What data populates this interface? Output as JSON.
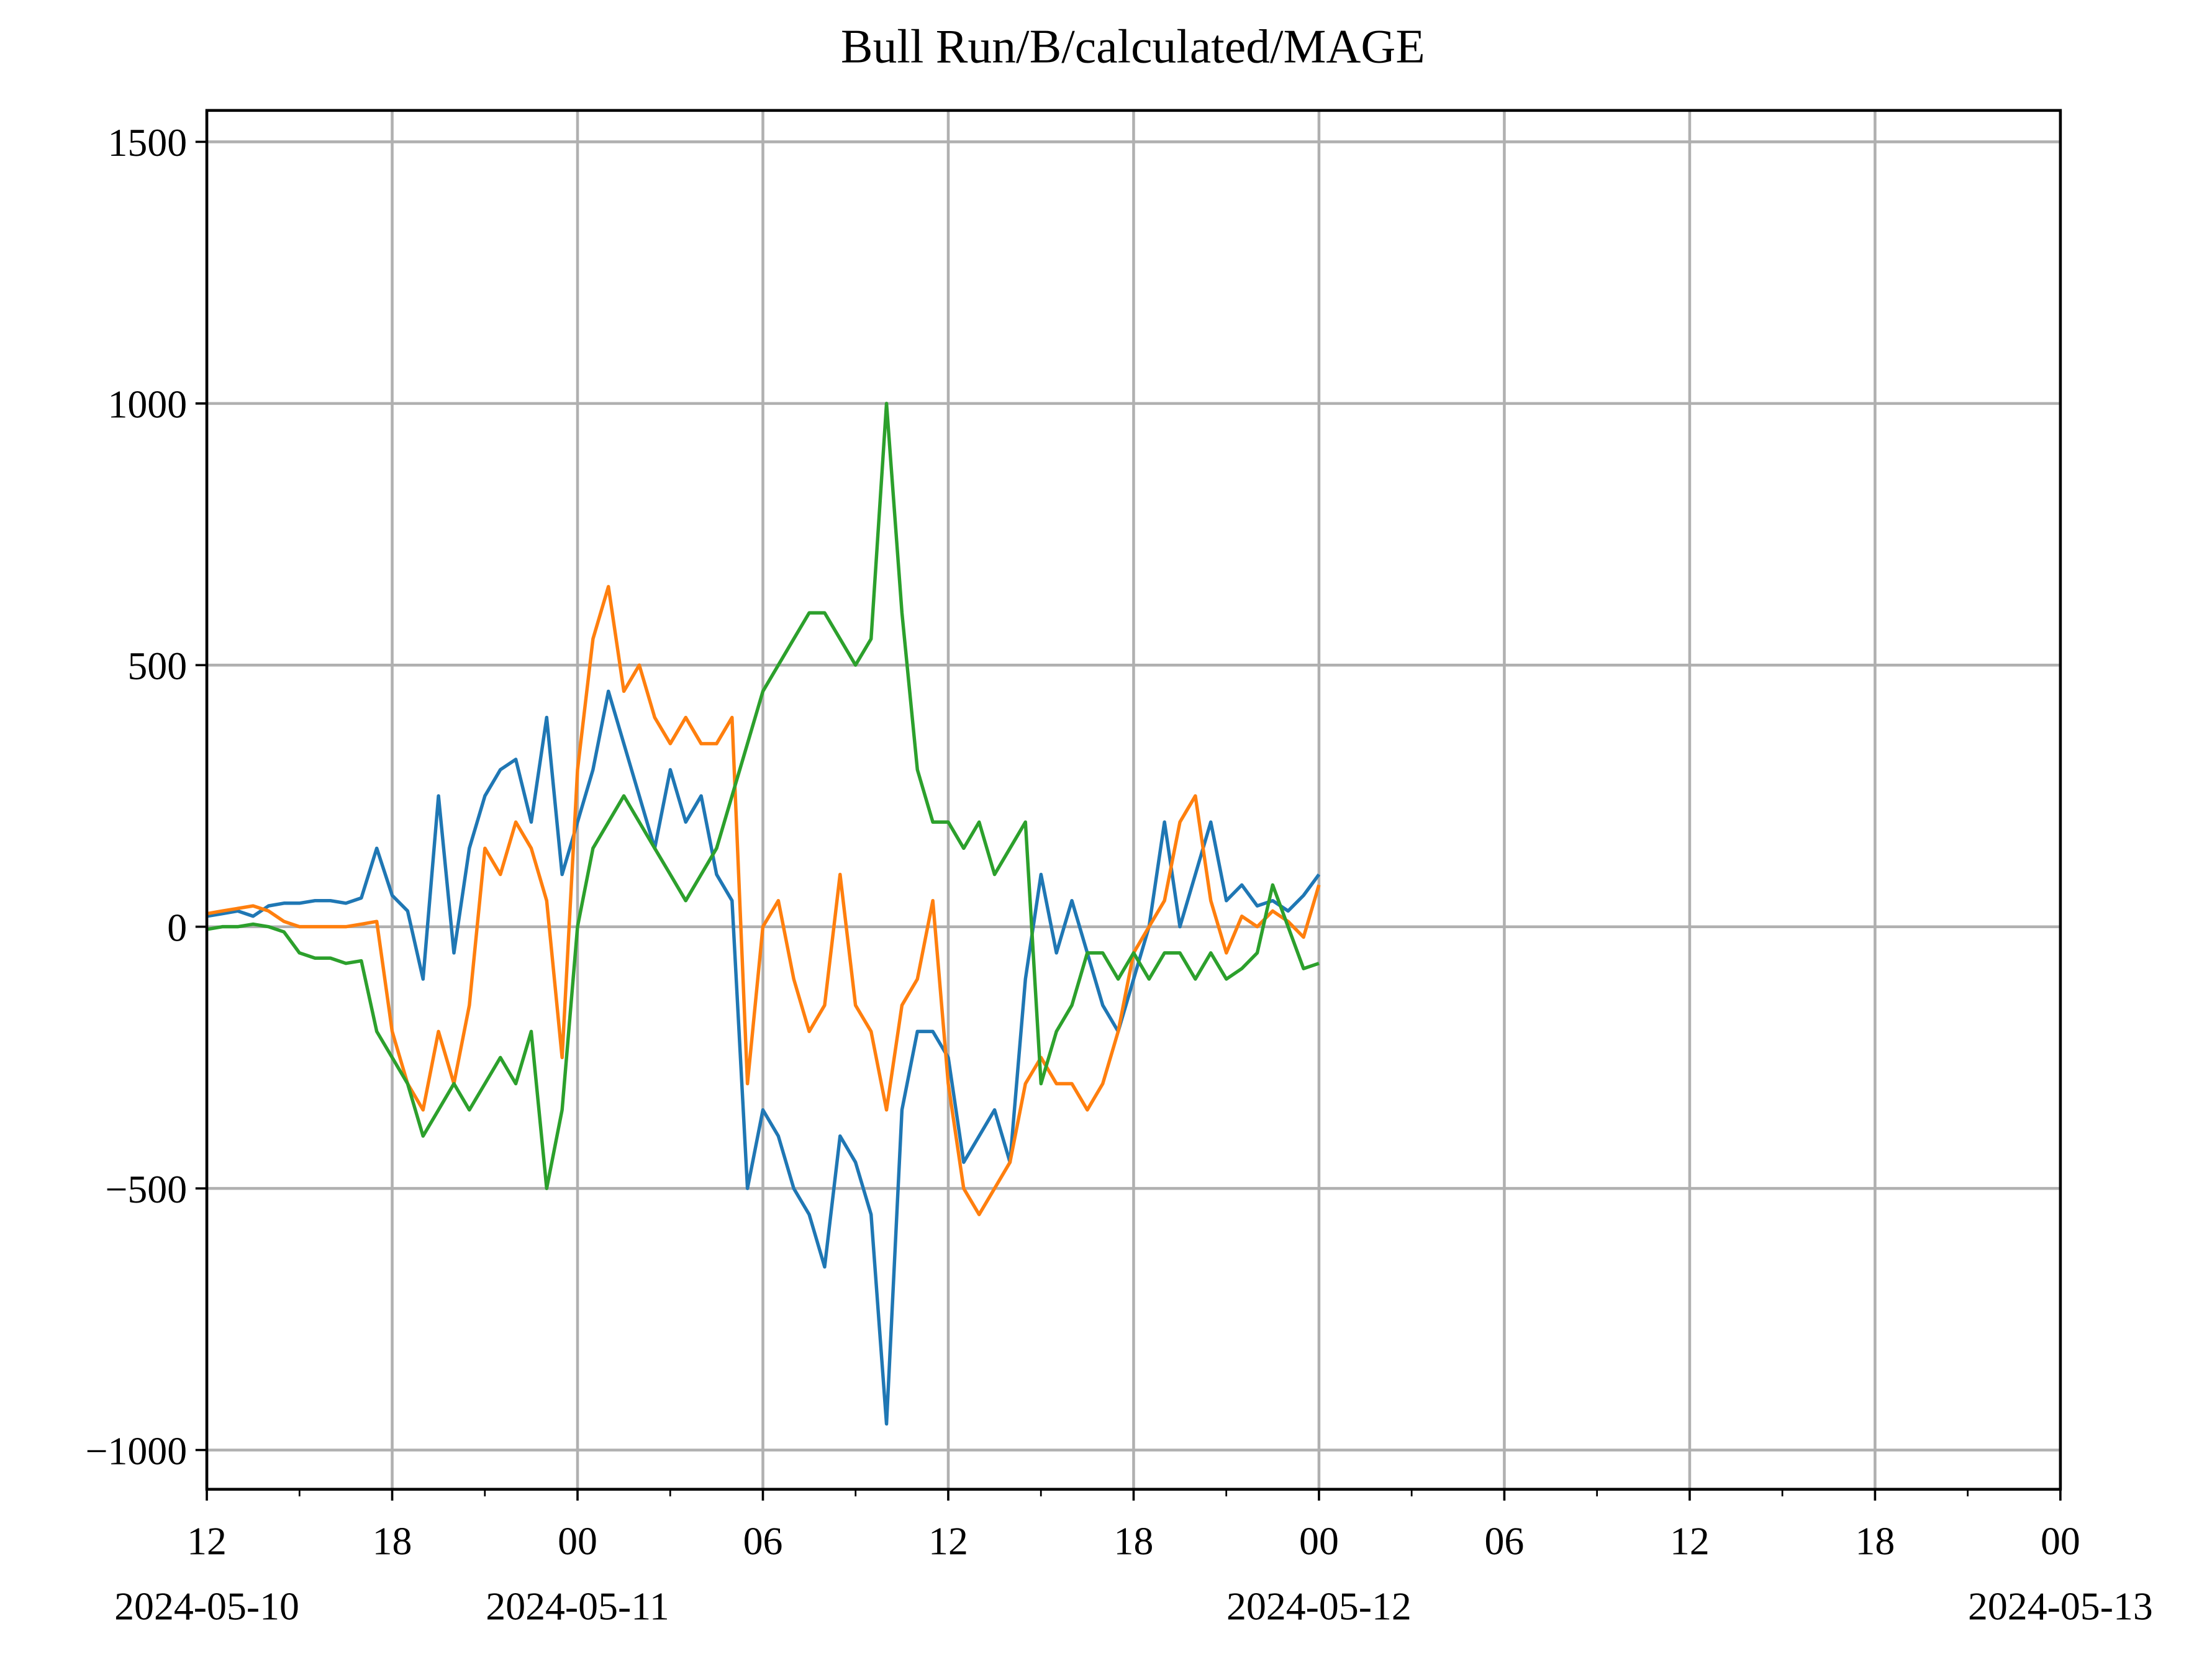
{
  "chart_data": {
    "type": "line",
    "title": "Bull Run/B/calculated/MAGE",
    "x": [
      "2024-05-10 12:00",
      "2024-05-10 12:30",
      "2024-05-10 13:00",
      "2024-05-10 13:30",
      "2024-05-10 14:00",
      "2024-05-10 14:30",
      "2024-05-10 15:00",
      "2024-05-10 15:30",
      "2024-05-10 16:00",
      "2024-05-10 16:30",
      "2024-05-10 17:00",
      "2024-05-10 17:30",
      "2024-05-10 18:00",
      "2024-05-10 18:30",
      "2024-05-10 19:00",
      "2024-05-10 19:30",
      "2024-05-10 20:00",
      "2024-05-10 20:30",
      "2024-05-10 21:00",
      "2024-05-10 21:30",
      "2024-05-10 22:00",
      "2024-05-10 22:30",
      "2024-05-10 23:00",
      "2024-05-10 23:30",
      "2024-05-11 00:00",
      "2024-05-11 00:30",
      "2024-05-11 01:00",
      "2024-05-11 01:30",
      "2024-05-11 02:00",
      "2024-05-11 02:30",
      "2024-05-11 03:00",
      "2024-05-11 03:30",
      "2024-05-11 04:00",
      "2024-05-11 04:30",
      "2024-05-11 05:00",
      "2024-05-11 05:30",
      "2024-05-11 06:00",
      "2024-05-11 06:30",
      "2024-05-11 07:00",
      "2024-05-11 07:30",
      "2024-05-11 08:00",
      "2024-05-11 08:30",
      "2024-05-11 09:00",
      "2024-05-11 09:30",
      "2024-05-11 10:00",
      "2024-05-11 10:30",
      "2024-05-11 11:00",
      "2024-05-11 11:30",
      "2024-05-11 12:00",
      "2024-05-11 12:30",
      "2024-05-11 13:00",
      "2024-05-11 13:30",
      "2024-05-11 14:00",
      "2024-05-11 14:30",
      "2024-05-11 15:00",
      "2024-05-11 15:30",
      "2024-05-11 16:00",
      "2024-05-11 16:30",
      "2024-05-11 17:00",
      "2024-05-11 17:30",
      "2024-05-11 18:00",
      "2024-05-11 18:30",
      "2024-05-11 19:00",
      "2024-05-11 19:30",
      "2024-05-11 20:00",
      "2024-05-11 20:30",
      "2024-05-11 21:00",
      "2024-05-11 21:30",
      "2024-05-11 22:00",
      "2024-05-11 22:30",
      "2024-05-11 23:00",
      "2024-05-11 23:30",
      "2024-05-12 00:00"
    ],
    "series": [
      {
        "color": "#1f77b4",
        "values": [
          20,
          25,
          30,
          20,
          40,
          45,
          45,
          50,
          50,
          45,
          55,
          150,
          60,
          30,
          -100,
          250,
          -50,
          150,
          250,
          300,
          320,
          200,
          400,
          100,
          200,
          300,
          450,
          350,
          250,
          150,
          300,
          200,
          250,
          100,
          50,
          -500,
          -350,
          -400,
          -500,
          -550,
          -650,
          -400,
          -450,
          -550,
          -950,
          -350,
          -200,
          -200,
          -250,
          -450,
          -400,
          -350,
          -450,
          -100,
          100,
          -50,
          50,
          -50,
          -150,
          -200,
          -100,
          0,
          200,
          0,
          100,
          200,
          50,
          80,
          40,
          50,
          30,
          60,
          100
        ]
      },
      {
        "color": "#ff7f0e",
        "values": [
          25,
          30,
          35,
          40,
          30,
          10,
          0,
          0,
          0,
          0,
          5,
          10,
          -200,
          -300,
          -350,
          -200,
          -300,
          -150,
          150,
          100,
          200,
          150,
          50,
          -250,
          300,
          550,
          650,
          450,
          500,
          400,
          350,
          400,
          350,
          350,
          400,
          -300,
          0,
          50,
          -100,
          -200,
          -150,
          100,
          -150,
          -200,
          -350,
          -150,
          -100,
          50,
          -300,
          -500,
          -550,
          -500,
          -450,
          -300,
          -250,
          -300,
          -300,
          -350,
          -300,
          -200,
          -50,
          0,
          50,
          200,
          250,
          50,
          -50,
          20,
          0,
          30,
          10,
          -20,
          80
        ]
      },
      {
        "color": "#2ca02c",
        "values": [
          -5,
          0,
          0,
          5,
          0,
          -10,
          -50,
          -60,
          -60,
          -70,
          -65,
          -200,
          -250,
          -300,
          -400,
          -350,
          -300,
          -350,
          -300,
          -250,
          -300,
          -200,
          -500,
          -350,
          0,
          150,
          200,
          250,
          200,
          150,
          100,
          50,
          100,
          150,
          250,
          350,
          450,
          500,
          550,
          600,
          600,
          550,
          500,
          550,
          1000,
          600,
          300,
          200,
          200,
          150,
          200,
          100,
          150,
          200,
          -300,
          -200,
          -150,
          -50,
          -50,
          -100,
          -50,
          -100,
          -50,
          -50,
          -100,
          -50,
          -100,
          -80,
          -50,
          80,
          0,
          -80,
          -70
        ]
      }
    ],
    "xlim": [
      "2024-05-10 12:00",
      "2024-05-13 00:00"
    ],
    "xticks": [
      {
        "value": "2024-05-10 12:00",
        "label": "12",
        "date": "2024-05-10"
      },
      {
        "value": "2024-05-10 18:00",
        "label": "18"
      },
      {
        "value": "2024-05-11 00:00",
        "label": "00",
        "date": "2024-05-11"
      },
      {
        "value": "2024-05-11 06:00",
        "label": "06"
      },
      {
        "value": "2024-05-11 12:00",
        "label": "12"
      },
      {
        "value": "2024-05-11 18:00",
        "label": "18"
      },
      {
        "value": "2024-05-12 00:00",
        "label": "00",
        "date": "2024-05-12"
      },
      {
        "value": "2024-05-12 06:00",
        "label": "06"
      },
      {
        "value": "2024-05-12 12:00",
        "label": "12"
      },
      {
        "value": "2024-05-12 18:00",
        "label": "18"
      },
      {
        "value": "2024-05-13 00:00",
        "label": "00",
        "date": "2024-05-13"
      }
    ],
    "xminorticks": [
      "2024-05-10 15:00",
      "2024-05-10 21:00",
      "2024-05-11 03:00",
      "2024-05-11 09:00",
      "2024-05-11 15:00",
      "2024-05-11 21:00",
      "2024-05-12 03:00",
      "2024-05-12 09:00",
      "2024-05-12 15:00",
      "2024-05-12 21:00"
    ],
    "ylim": [
      -1075,
      1560
    ],
    "yticks": [
      {
        "value": -1000,
        "label": "−1000"
      },
      {
        "value": -500,
        "label": "−500"
      },
      0,
      500,
      1000,
      1500
    ],
    "grid": true
  }
}
